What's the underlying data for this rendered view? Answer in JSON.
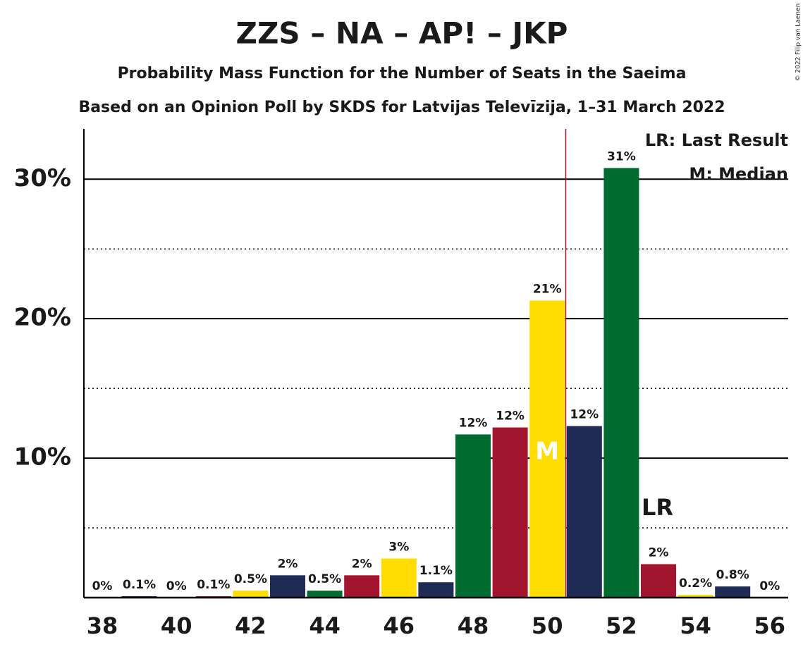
{
  "chart_data": {
    "type": "bar",
    "title": "ZZS – NA – AP! – JKP",
    "subtitle": "Probability Mass Function for the Number of Seats in the Saeima",
    "subtitle2": "Based on an Opinion Poll by SKDS for Latvijas Televīzija, 1–31 March 2022",
    "copyright": "© 2022 Filip van Laenen",
    "legend": [
      "LR: Last Result",
      "M: Median"
    ],
    "categories": [
      "38",
      null,
      "40",
      null,
      "42",
      null,
      "44",
      null,
      "46",
      null,
      "48",
      null,
      "50",
      null,
      "52",
      null,
      "54",
      null,
      "56"
    ],
    "values": [
      0,
      0.1,
      0,
      0.1,
      0.5,
      1.6,
      0.5,
      1.6,
      2.8,
      1.1,
      11.7,
      12.2,
      21.3,
      12.3,
      30.8,
      2.4,
      0.2,
      0.8,
      0
    ],
    "value_labels": [
      "0%",
      "0.1%",
      "0%",
      "0.1%",
      "0.5%",
      "2%",
      "0.5%",
      "2%",
      "3%",
      "1.1%",
      "12%",
      "12%",
      "21%",
      "12%",
      "31%",
      "2%",
      "0.2%",
      "0.8%",
      "0%"
    ],
    "colors": [
      "#ffdd00",
      "#1f2a55",
      "#006b2e",
      "#a3142f",
      "#ffdd00",
      "#1f2a55",
      "#006b2e",
      "#a3142f",
      "#ffdd00",
      "#1f2a55",
      "#006b2e",
      "#a3142f",
      "#ffdd00",
      "#1f2a55",
      "#006b2e",
      "#a3142f",
      "#ffdd00",
      "#1f2a55",
      "#006b2e"
    ],
    "ylim": [
      0,
      33.6
    ],
    "yticks": [
      {
        "value": 10,
        "label": "10%"
      },
      {
        "value": 20,
        "label": "20%"
      },
      {
        "value": 30,
        "label": "30%"
      }
    ],
    "minor_yticks": [
      5,
      15,
      25
    ],
    "grid": true,
    "median": {
      "index": 12,
      "label": "M"
    },
    "last_result": {
      "index": 15,
      "label": "LR"
    },
    "threshold": {
      "position": 12.5,
      "color": "#a3142f"
    }
  }
}
